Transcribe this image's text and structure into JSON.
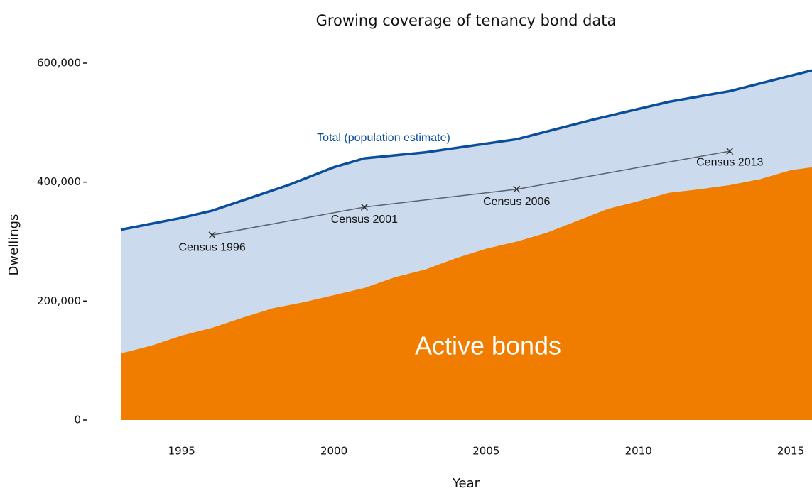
{
  "chart_data": {
    "type": "area",
    "title": "Growing coverage of tenancy bond data",
    "xlabel": "Year",
    "ylabel": "Dwellings",
    "xlim": [
      1993,
      2015.7
    ],
    "ylim": [
      0,
      600000
    ],
    "xticks": [
      1995,
      2000,
      2005,
      2010,
      2015
    ],
    "yticks": [
      {
        "value": 0,
        "label": "0"
      },
      {
        "value": 200000,
        "label": "200,000"
      },
      {
        "value": 400000,
        "label": "400,000"
      },
      {
        "value": 600000,
        "label": "600,000"
      }
    ],
    "series": [
      {
        "name": "Total (population estimate)",
        "color": "#0b4f9c",
        "fill": "#cbdaec",
        "x": [
          1993,
          1995,
          1996,
          1998.5,
          2000,
          2001,
          2003,
          2006,
          2008.5,
          2011,
          2013,
          2015.7
        ],
        "values": [
          320000,
          340000,
          352000,
          395000,
          425000,
          440000,
          450000,
          472000,
          505000,
          535000,
          553000,
          588000
        ]
      },
      {
        "name": "Active bonds",
        "color": "#f07d00",
        "x": [
          1993,
          1994,
          1995,
          1996,
          1997,
          1998,
          1999,
          2000,
          2001,
          2002,
          2003,
          2004,
          2005,
          2006,
          2007,
          2008,
          2009,
          2010,
          2011,
          2012,
          2013,
          2014,
          2015,
          2015.7
        ],
        "values": [
          112000,
          125000,
          142000,
          155000,
          172000,
          188000,
          198000,
          210000,
          222000,
          240000,
          253000,
          272000,
          288000,
          300000,
          315000,
          335000,
          355000,
          368000,
          382000,
          388000,
          395000,
          405000,
          420000,
          425000
        ]
      }
    ],
    "census": {
      "color": "#5a6270",
      "x": [
        1996,
        2001,
        2006,
        2013
      ],
      "values": [
        311000,
        358000,
        388000,
        452000
      ],
      "labels": [
        "Census 1996",
        "Census 2001",
        "Census 2006",
        "Census 2013"
      ]
    }
  }
}
